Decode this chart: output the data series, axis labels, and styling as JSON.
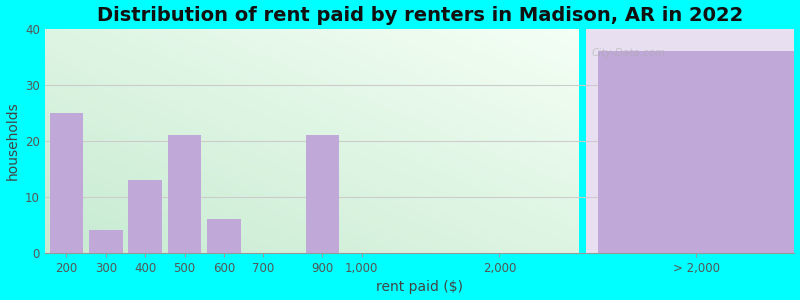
{
  "title": "Distribution of rent paid by renters in Madison, AR in 2022",
  "xlabel": "rent paid ($)",
  "ylabel": "households",
  "bar_labels": [
    "200",
    "300",
    "400",
    "500",
    "600",
    "700",
    "900",
    "1,000",
    "2,000",
    "> 2,000"
  ],
  "bar_values": [
    25,
    4,
    13,
    21,
    6,
    0,
    21,
    0,
    0,
    36
  ],
  "bar_color": "#c0a8d8",
  "bg_color": "#00ffff",
  "ylim": [
    0,
    40
  ],
  "yticks": [
    0,
    10,
    20,
    30,
    40
  ],
  "title_fontsize": 14,
  "axis_fontsize": 10,
  "tick_fontsize": 8.5,
  "watermark": "City-Data.com",
  "positions": [
    0,
    1,
    2,
    3,
    4,
    5,
    6.5,
    7.5,
    11,
    16
  ],
  "bar_width": 0.85,
  "xlim_left": -0.55,
  "xlim_right": 18.5,
  "left_bg_end": 13.0,
  "right_bg_start": 13.2,
  "left_bg_color_top": "#e8f5e8",
  "left_bg_color_bottom": "#c8f0d0",
  "right_bg_color": "#d8c8e8",
  "grid_color": "#cccccc",
  "grid_linewidth": 0.8
}
